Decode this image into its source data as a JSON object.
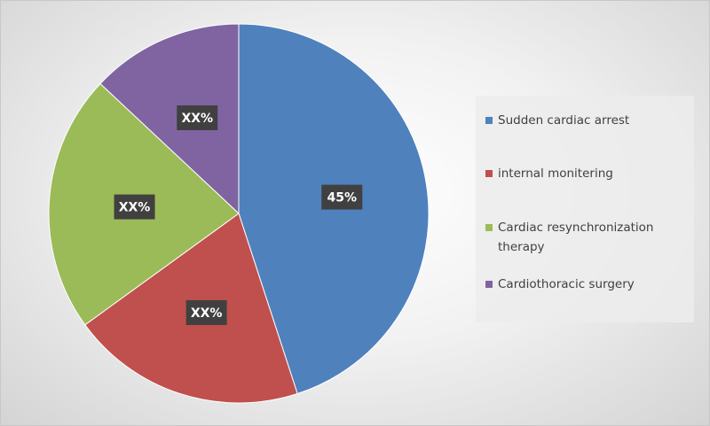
{
  "chart_data": {
    "type": "pie",
    "slices": [
      {
        "label": "Sudden cardiac arrest",
        "value": 45,
        "data_label": "45%",
        "color": "#4f81bd"
      },
      {
        "label": "internal monitering",
        "value": 20,
        "data_label": "XX%",
        "color": "#c0504d"
      },
      {
        "label": " Cardiac resynchronization therapy",
        "value": 22,
        "data_label": "XX%",
        "color": "#9bbb59"
      },
      {
        "label": "Cardiothoracic surgery",
        "value": 13,
        "data_label": "XX%",
        "color": "#8064a2"
      }
    ],
    "legend_position": "right"
  }
}
